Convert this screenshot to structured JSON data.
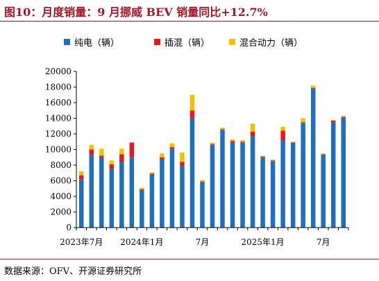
{
  "title": "图10：月度销量：9 月挪威 BEV 销量同比+12.7%",
  "source": "数据来源：OFV、开源证券研究所",
  "colors": {
    "bev": "#1f6fc0",
    "phev": "#e41a1c",
    "hev": "#f5c000",
    "title": "#a4152a"
  },
  "chart_data": {
    "type": "bar",
    "stacked": true,
    "legend_position": "top",
    "grid": false,
    "ylim": [
      0,
      20000
    ],
    "yticks": [
      0,
      2000,
      4000,
      6000,
      8000,
      10000,
      12000,
      14000,
      16000,
      18000,
      20000
    ],
    "xtick_labels": [
      {
        "index": 0,
        "label": "2023年7月"
      },
      {
        "index": 6,
        "label": "2024年1月"
      },
      {
        "index": 12,
        "label": "7月"
      },
      {
        "index": 18,
        "label": "2025年1月"
      },
      {
        "index": 24,
        "label": "7月"
      }
    ],
    "categories": [
      "2023-07",
      "2023-08",
      "2023-09",
      "2023-10",
      "2023-11",
      "2023-12",
      "2024-01",
      "2024-02",
      "2024-03",
      "2024-04",
      "2024-05",
      "2024-06",
      "2024-07",
      "2024-08",
      "2024-09",
      "2024-10",
      "2024-11",
      "2024-12",
      "2025-01",
      "2025-02",
      "2025-03",
      "2025-04",
      "2025-05",
      "2025-06",
      "2025-07",
      "2025-08",
      "2025-09"
    ],
    "series": [
      {
        "name": "纯电（辆）",
        "color": "#1f6fc0",
        "values": [
          6200,
          9300,
          9000,
          7500,
          8400,
          9000,
          4800,
          6800,
          8700,
          10100,
          7900,
          14000,
          5800,
          10600,
          12500,
          10900,
          10900,
          11700,
          9000,
          8500,
          11200,
          10800,
          13400,
          17800,
          9300,
          13500,
          14100
        ]
      },
      {
        "name": "插混（辆）",
        "color": "#e41a1c",
        "values": [
          500,
          700,
          200,
          600,
          1000,
          1900,
          100,
          100,
          300,
          200,
          500,
          1000,
          100,
          100,
          100,
          200,
          100,
          600,
          100,
          100,
          1200,
          100,
          100,
          100,
          100,
          200,
          100
        ]
      },
      {
        "name": "混合动力（辆）",
        "color": "#f5c000",
        "values": [
          500,
          600,
          900,
          500,
          700,
          0,
          200,
          200,
          500,
          500,
          1200,
          2000,
          200,
          200,
          200,
          200,
          200,
          1000,
          100,
          100,
          500,
          100,
          500,
          300,
          100,
          100,
          100
        ]
      }
    ]
  }
}
